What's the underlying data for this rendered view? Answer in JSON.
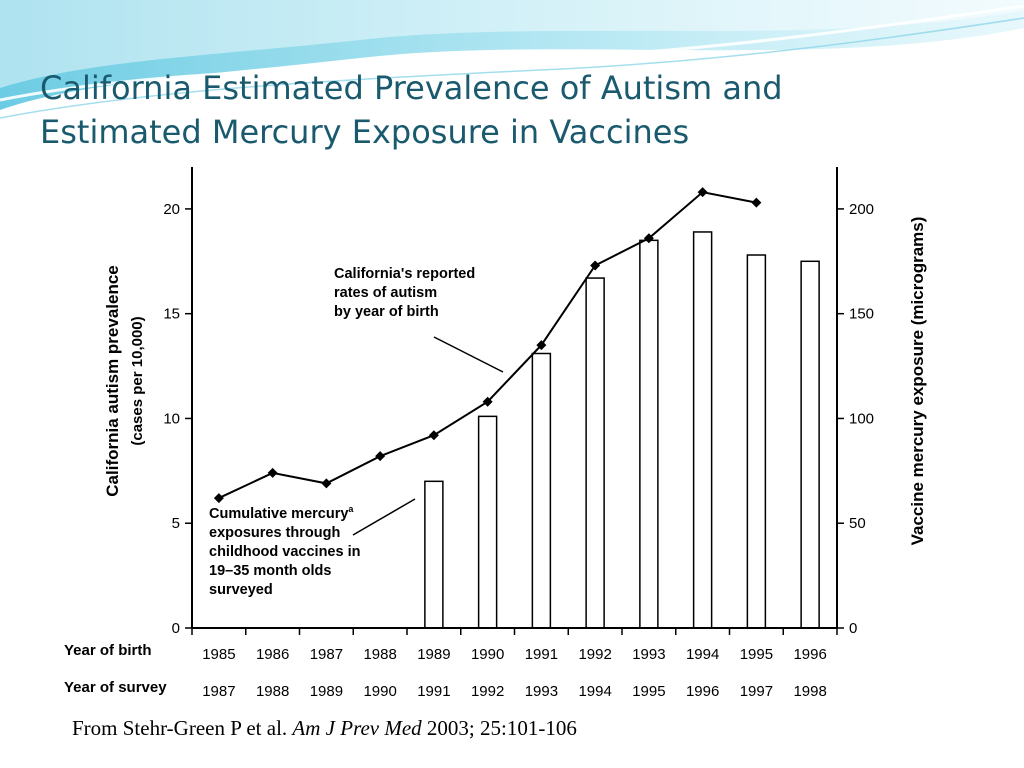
{
  "slide": {
    "title_line1": "California Estimated Prevalence of Autism and",
    "title_line2": "Estimated Mercury Exposure in Vaccines",
    "citation_authors": "From Stehr-Green P et al.",
    "citation_journal": "Am J Prev Med",
    "citation_details": "2003; 25:101-106"
  },
  "colors": {
    "title": "#1a5a6e",
    "deco_wave": "#7fd4e8",
    "bars": "#ffffff",
    "line": "#000000"
  },
  "chart_data": {
    "type": "bar",
    "left_axis_label_line1": "California autism prevalence",
    "left_axis_label_line2": "(cases per 10,000)",
    "right_axis_label": "Vaccine mercury exposure (micrograms)",
    "left_ylim": [
      0,
      22
    ],
    "right_ylim": [
      0,
      220
    ],
    "left_ticks": [
      "0",
      "5",
      "10",
      "15",
      "20"
    ],
    "right_ticks": [
      "0",
      "50",
      "100",
      "150",
      "200"
    ],
    "row_label_birth": "Year of birth",
    "row_label_survey": "Year of survey",
    "years_birth": [
      "1985",
      "1986",
      "1987",
      "1988",
      "1989",
      "1990",
      "1991",
      "1992",
      "1993",
      "1994",
      "1995",
      "1996"
    ],
    "years_survey": [
      "1987",
      "1988",
      "1989",
      "1990",
      "1991",
      "1992",
      "1993",
      "1994",
      "1995",
      "1996",
      "1997",
      "1998"
    ],
    "series": [
      {
        "name": "California's reported rates of autism by year of birth",
        "axis": "left",
        "type": "line",
        "values": [
          6.2,
          7.4,
          6.9,
          8.2,
          9.2,
          10.8,
          13.5,
          17.3,
          18.6,
          20.8,
          20.3,
          null
        ]
      },
      {
        "name": "Cumulative mercury exposures through childhood vaccines in 19–35 month olds surveyed",
        "axis": "right",
        "type": "bar",
        "values": [
          null,
          null,
          null,
          null,
          70,
          101,
          131,
          167,
          185,
          189,
          178,
          175
        ]
      }
    ],
    "annotations": {
      "line_label": [
        "California's reported",
        "rates of autism",
        "by year of birth"
      ],
      "bar_label": [
        "Cumulative mercury",
        "exposures through",
        "childhood vaccines in",
        "19–35 month olds",
        "surveyed"
      ],
      "bar_label_superscript": "a"
    }
  }
}
